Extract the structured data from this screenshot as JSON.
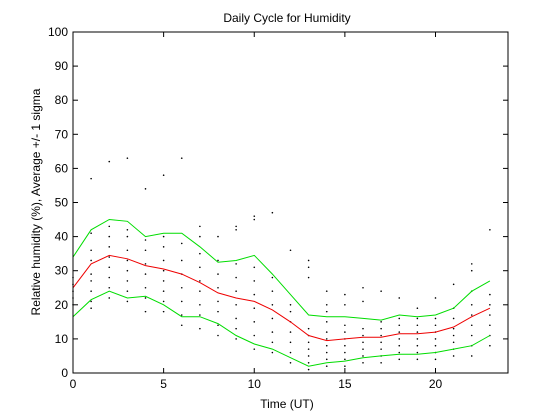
{
  "chart_data": {
    "type": "line",
    "title": "Daily Cycle for Humidity",
    "xlabel": "Time (UT)",
    "ylabel": "Relative humidity (%), Average +/- 1 sigma",
    "xlim": [
      0,
      24
    ],
    "ylim": [
      0,
      100
    ],
    "xticks": [
      0,
      5,
      10,
      15,
      20
    ],
    "yticks": [
      0,
      10,
      20,
      30,
      40,
      50,
      60,
      70,
      80,
      90,
      100
    ],
    "grid": false,
    "series": [
      {
        "color": "#00dd00",
        "x": [
          0,
          1,
          2,
          3,
          4,
          5,
          6,
          7,
          8,
          9,
          10,
          11,
          12,
          13,
          14,
          15,
          16,
          17,
          18,
          19,
          20,
          21,
          22,
          23
        ],
        "values": [
          34,
          42,
          45,
          44.5,
          40,
          41,
          41,
          37,
          32.5,
          33,
          34.5,
          29,
          23,
          17,
          16.5,
          16.5,
          16,
          15.5,
          17,
          16.5,
          17,
          19,
          24,
          27
        ]
      },
      {
        "color": "#ee0000",
        "x": [
          0,
          1,
          2,
          3,
          4,
          5,
          6,
          7,
          8,
          9,
          10,
          11,
          12,
          13,
          14,
          15,
          16,
          17,
          18,
          19,
          20,
          21,
          22,
          23
        ],
        "values": [
          25,
          32,
          34.5,
          33.5,
          31.5,
          30.5,
          29,
          26.5,
          23.5,
          22,
          21,
          18.5,
          15,
          11,
          9.5,
          10,
          10.5,
          10.5,
          11.5,
          11.5,
          12,
          13.5,
          16.5,
          19
        ]
      },
      {
        "color": "#00dd00",
        "x": [
          0,
          1,
          2,
          3,
          4,
          5,
          6,
          7,
          8,
          9,
          10,
          11,
          12,
          13,
          14,
          15,
          16,
          17,
          18,
          19,
          20,
          21,
          22,
          23
        ],
        "values": [
          16.5,
          21.5,
          24,
          22,
          22.5,
          20,
          16.5,
          16.5,
          14.5,
          11,
          8.5,
          7,
          4.5,
          2,
          3,
          3.5,
          4.5,
          5,
          5.5,
          5.5,
          6,
          7,
          8,
          11
        ]
      }
    ],
    "scatter": {
      "color": "#000000",
      "points": [
        [
          0,
          20
        ],
        [
          0,
          22
        ],
        [
          0,
          24
        ],
        [
          0,
          26
        ],
        [
          0,
          28
        ],
        [
          1,
          19
        ],
        [
          1,
          21
        ],
        [
          1,
          24
        ],
        [
          1,
          27
        ],
        [
          1,
          29
        ],
        [
          1,
          33
        ],
        [
          1,
          36
        ],
        [
          1,
          41
        ],
        [
          1,
          57
        ],
        [
          2,
          22
        ],
        [
          2,
          25
        ],
        [
          2,
          28
        ],
        [
          2,
          31
        ],
        [
          2,
          34
        ],
        [
          2,
          37
        ],
        [
          2,
          40
        ],
        [
          2,
          43
        ],
        [
          2,
          62
        ],
        [
          3,
          21
        ],
        [
          3,
          24
        ],
        [
          3,
          27
        ],
        [
          3,
          30
        ],
        [
          3,
          33
        ],
        [
          3,
          36
        ],
        [
          3,
          40
        ],
        [
          3,
          42
        ],
        [
          3,
          63
        ],
        [
          4,
          18
        ],
        [
          4,
          22
        ],
        [
          4,
          25
        ],
        [
          4,
          29
        ],
        [
          4,
          32
        ],
        [
          4,
          36
        ],
        [
          4,
          39
        ],
        [
          4,
          54
        ],
        [
          5,
          18
        ],
        [
          5,
          21
        ],
        [
          5,
          24
        ],
        [
          5,
          27
        ],
        [
          5,
          30
        ],
        [
          5,
          33
        ],
        [
          5,
          37
        ],
        [
          5,
          40
        ],
        [
          5,
          58
        ],
        [
          6,
          14
        ],
        [
          6,
          17
        ],
        [
          6,
          21
        ],
        [
          6,
          25
        ],
        [
          6,
          29
        ],
        [
          6,
          33
        ],
        [
          6,
          38
        ],
        [
          6,
          63
        ],
        [
          7,
          13
        ],
        [
          7,
          17
        ],
        [
          7,
          20
        ],
        [
          7,
          24
        ],
        [
          7,
          27
        ],
        [
          7,
          31
        ],
        [
          7,
          35
        ],
        [
          7,
          40
        ],
        [
          7,
          43
        ],
        [
          8,
          11
        ],
        [
          8,
          14
        ],
        [
          8,
          18
        ],
        [
          8,
          21
        ],
        [
          8,
          25
        ],
        [
          8,
          29
        ],
        [
          8,
          33
        ],
        [
          8,
          40
        ],
        [
          9,
          10
        ],
        [
          9,
          13
        ],
        [
          9,
          16
        ],
        [
          9,
          20
        ],
        [
          9,
          24
        ],
        [
          9,
          28
        ],
        [
          9,
          32
        ],
        [
          9,
          42
        ],
        [
          9,
          43
        ],
        [
          10,
          7
        ],
        [
          10,
          11
        ],
        [
          10,
          15
        ],
        [
          10,
          19
        ],
        [
          10,
          23
        ],
        [
          10,
          27
        ],
        [
          10,
          31
        ],
        [
          10,
          45
        ],
        [
          10,
          46
        ],
        [
          11,
          6
        ],
        [
          11,
          9
        ],
        [
          11,
          12
        ],
        [
          11,
          16
        ],
        [
          11,
          20
        ],
        [
          11,
          24
        ],
        [
          11,
          28
        ],
        [
          11,
          47
        ],
        [
          12,
          3
        ],
        [
          12,
          6
        ],
        [
          12,
          9
        ],
        [
          12,
          12
        ],
        [
          12,
          15
        ],
        [
          12,
          18
        ],
        [
          12,
          20
        ],
        [
          12,
          36
        ],
        [
          13,
          1
        ],
        [
          13,
          3
        ],
        [
          13,
          5
        ],
        [
          13,
          7
        ],
        [
          13,
          9
        ],
        [
          13,
          11
        ],
        [
          13,
          13
        ],
        [
          13,
          28
        ],
        [
          13,
          31
        ],
        [
          13,
          33
        ],
        [
          14,
          2
        ],
        [
          14,
          4
        ],
        [
          14,
          6
        ],
        [
          14,
          8
        ],
        [
          14,
          10
        ],
        [
          14,
          12
        ],
        [
          14,
          15
        ],
        [
          14,
          18
        ],
        [
          14,
          20
        ],
        [
          14,
          24
        ],
        [
          15,
          2
        ],
        [
          15,
          4
        ],
        [
          15,
          6
        ],
        [
          15,
          8
        ],
        [
          15,
          10
        ],
        [
          15,
          12
        ],
        [
          15,
          14
        ],
        [
          15,
          20
        ],
        [
          15,
          23
        ],
        [
          16,
          3
        ],
        [
          16,
          5
        ],
        [
          16,
          7
        ],
        [
          16,
          9
        ],
        [
          16,
          11
        ],
        [
          16,
          13
        ],
        [
          16,
          21
        ],
        [
          16,
          25
        ],
        [
          17,
          3
        ],
        [
          17,
          5
        ],
        [
          17,
          7
        ],
        [
          17,
          9
        ],
        [
          17,
          11
        ],
        [
          17,
          13
        ],
        [
          17,
          15
        ],
        [
          17,
          24
        ],
        [
          18,
          4
        ],
        [
          18,
          6
        ],
        [
          18,
          8
        ],
        [
          18,
          10
        ],
        [
          18,
          12
        ],
        [
          18,
          14
        ],
        [
          18,
          16
        ],
        [
          18,
          22
        ],
        [
          19,
          4
        ],
        [
          19,
          6
        ],
        [
          19,
          8
        ],
        [
          19,
          10
        ],
        [
          19,
          12
        ],
        [
          19,
          14
        ],
        [
          19,
          16
        ],
        [
          19,
          19
        ],
        [
          20,
          4
        ],
        [
          20,
          6
        ],
        [
          20,
          8
        ],
        [
          20,
          10
        ],
        [
          20,
          12
        ],
        [
          20,
          14
        ],
        [
          20,
          16
        ],
        [
          20,
          22
        ],
        [
          21,
          5
        ],
        [
          21,
          7
        ],
        [
          21,
          9
        ],
        [
          21,
          11
        ],
        [
          21,
          13
        ],
        [
          21,
          16
        ],
        [
          21,
          19
        ],
        [
          21,
          26
        ],
        [
          22,
          5
        ],
        [
          22,
          8
        ],
        [
          22,
          11
        ],
        [
          22,
          14
        ],
        [
          22,
          17
        ],
        [
          22,
          20
        ],
        [
          22,
          24
        ],
        [
          22,
          30
        ],
        [
          22,
          32
        ],
        [
          23,
          8
        ],
        [
          23,
          11
        ],
        [
          23,
          14
        ],
        [
          23,
          17
        ],
        [
          23,
          20
        ],
        [
          23,
          23
        ],
        [
          23,
          42
        ]
      ]
    }
  }
}
